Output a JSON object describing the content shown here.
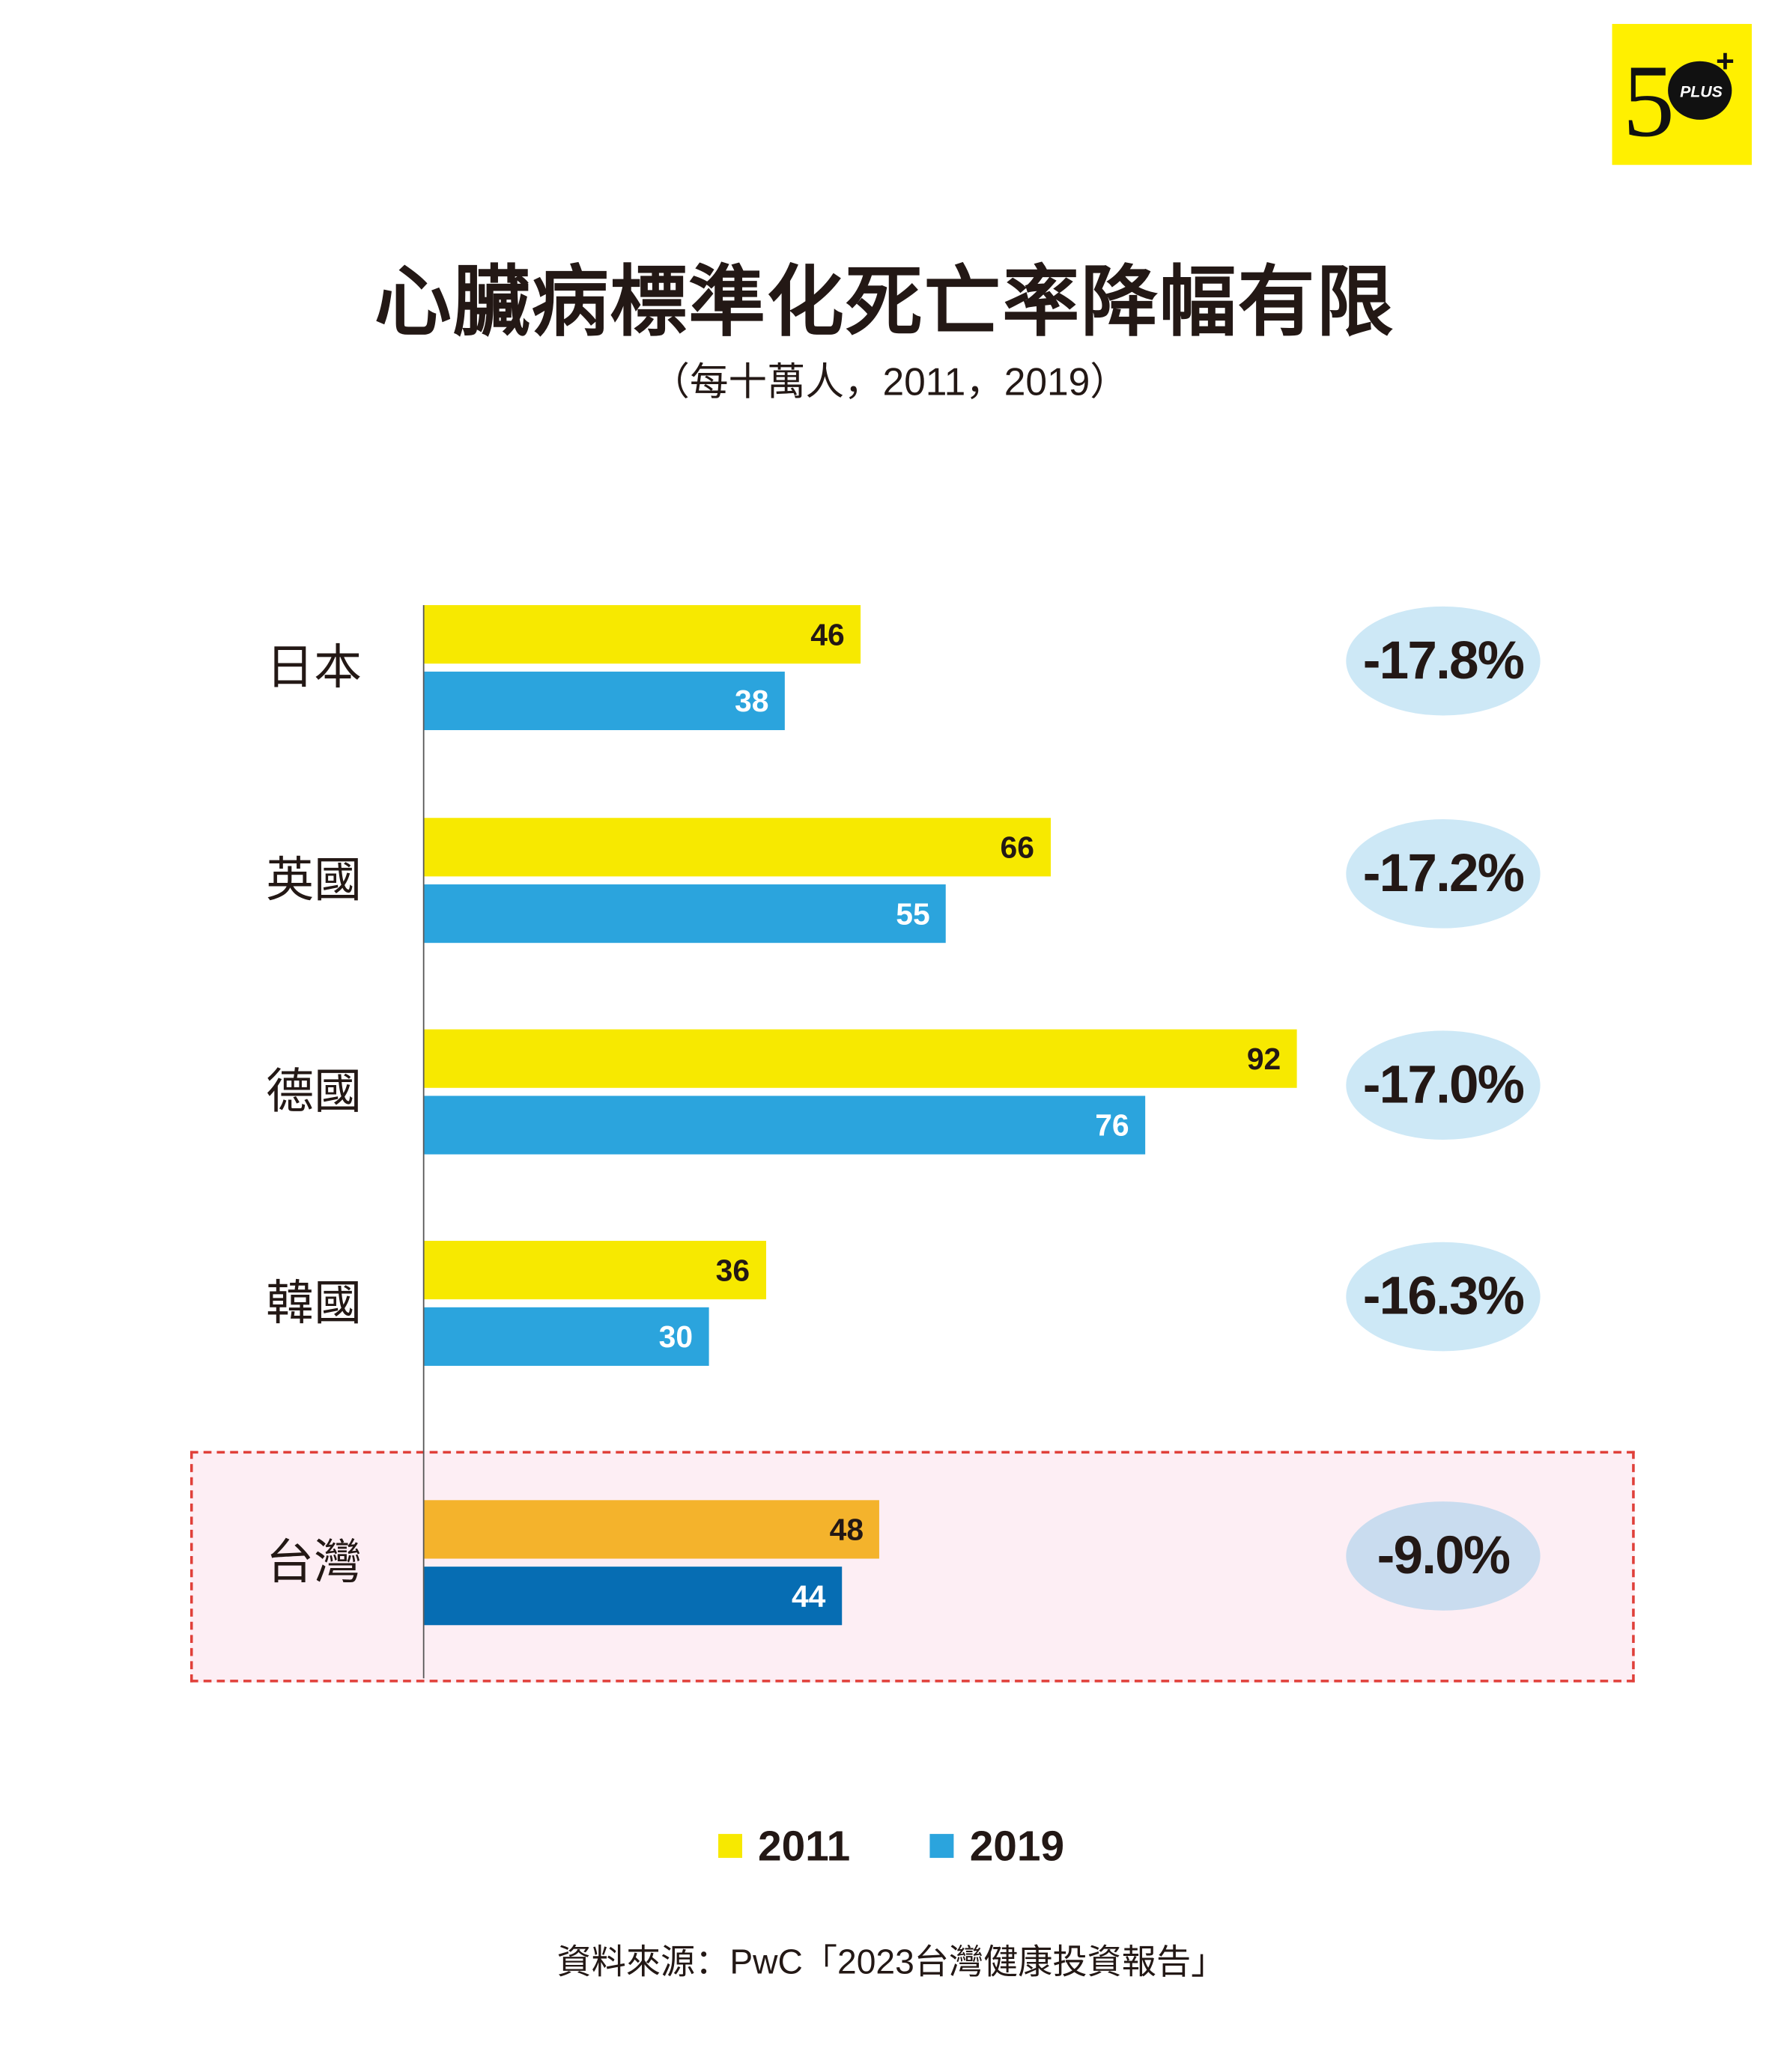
{
  "logo": {
    "text": "50 PLUS +",
    "bg": "#fff000"
  },
  "chart_data": {
    "type": "bar",
    "orientation": "horizontal",
    "title": "心臟病標準化死亡率降幅有限",
    "subtitle": "（每十萬人，2011，2019）",
    "categories": [
      "日本",
      "英國",
      "德國",
      "韓國",
      "台灣"
    ],
    "series": [
      {
        "name": "2011",
        "values": [
          46,
          66,
          92,
          36,
          48
        ],
        "color": "#f7e900",
        "highlight_color": "#f4b32c"
      },
      {
        "name": "2019",
        "values": [
          38,
          55,
          76,
          30,
          44
        ],
        "color": "#2ba4dd",
        "highlight_color": "#066db3"
      }
    ],
    "change_labels": [
      "-17.8%",
      "-17.2%",
      "-17.0%",
      "-16.3%",
      "-9.0%"
    ],
    "highlighted_category": "台灣",
    "xlim": [
      0,
      92
    ],
    "grid": false,
    "legend": "bottom",
    "source": "資料來源：PwC「2023台灣健康投資報告」"
  }
}
